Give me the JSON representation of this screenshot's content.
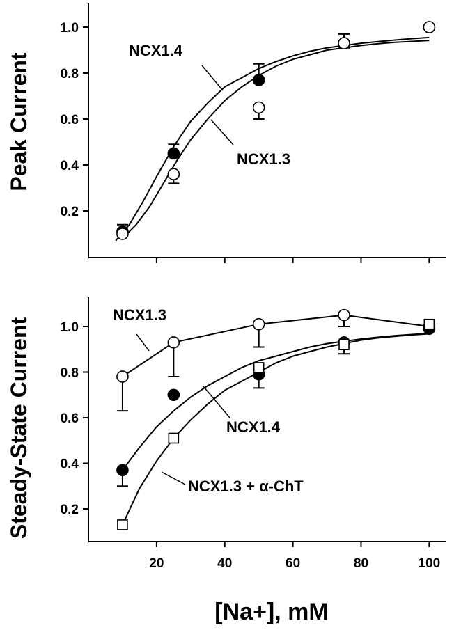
{
  "x_axis_title": "[Na+], mM",
  "chart_data": [
    {
      "type": "scatter",
      "ylabel": "Peak Current",
      "xlim": [
        0,
        105
      ],
      "ylim": [
        0,
        1.08
      ],
      "yticks": [
        0.2,
        0.4,
        0.6,
        0.8,
        1.0
      ],
      "ytick_labels": [
        "0.2",
        "0.4",
        "0.6",
        "0.8",
        "1.0"
      ],
      "series": [
        {
          "name": "NCX1.4",
          "marker": "filled-circle",
          "x": [
            10,
            25,
            50,
            75,
            100
          ],
          "y": [
            0.11,
            0.45,
            0.77,
            0.93,
            1.0
          ],
          "err_up": [
            0.03,
            0.04,
            0.07,
            0.04,
            0.0
          ],
          "err_down": [
            0.0,
            0.0,
            0.0,
            0.0,
            0.0
          ],
          "fit_x": [
            8,
            12,
            16,
            20,
            25,
            30,
            35,
            40,
            45,
            50,
            55,
            60,
            65,
            70,
            75,
            80,
            85,
            90,
            95,
            100
          ],
          "fit_y": [
            0.07,
            0.14,
            0.24,
            0.35,
            0.48,
            0.59,
            0.67,
            0.74,
            0.78,
            0.82,
            0.85,
            0.875,
            0.895,
            0.91,
            0.92,
            0.93,
            0.937,
            0.944,
            0.95,
            0.955
          ]
        },
        {
          "name": "NCX1.3",
          "marker": "open-circle",
          "x": [
            10,
            25,
            50,
            75,
            100
          ],
          "y": [
            0.1,
            0.36,
            0.65,
            0.93,
            1.0
          ],
          "err_up": [
            0.0,
            0.0,
            0.0,
            0.0,
            0.0
          ],
          "err_down": [
            0.0,
            0.04,
            0.05,
            0.02,
            0.0
          ],
          "fit_x": [
            10,
            14,
            18,
            22,
            26,
            30,
            35,
            40,
            45,
            50,
            55,
            60,
            65,
            70,
            75,
            80,
            85,
            90,
            95,
            100
          ],
          "fit_y": [
            0.08,
            0.14,
            0.22,
            0.32,
            0.42,
            0.51,
            0.6,
            0.68,
            0.74,
            0.79,
            0.83,
            0.86,
            0.88,
            0.9,
            0.91,
            0.92,
            0.928,
            0.934,
            0.938,
            0.942
          ]
        }
      ],
      "annotations": [
        {
          "text": "NCX1.4",
          "series": "NCX1.4"
        },
        {
          "text": "NCX1.3",
          "series": "NCX1.3"
        }
      ]
    },
    {
      "type": "scatter",
      "ylabel": "Steady-State Current",
      "xlabel": "[Na+], mM",
      "xlim": [
        0,
        105
      ],
      "ylim": [
        0.05,
        1.08
      ],
      "xticks": [
        20,
        40,
        60,
        80,
        100
      ],
      "xtick_labels": [
        "20",
        "40",
        "60",
        "80",
        "100"
      ],
      "yticks": [
        0.2,
        0.4,
        0.6,
        0.8,
        1.0
      ],
      "ytick_labels": [
        "0.2",
        "0.4",
        "0.6",
        "0.8",
        "1.0"
      ],
      "series": [
        {
          "name": "NCX1.3",
          "marker": "open-circle",
          "connected": true,
          "x": [
            10,
            25,
            50,
            75,
            100
          ],
          "y": [
            0.78,
            0.93,
            1.01,
            1.05,
            1.0
          ],
          "err_up": [
            0.0,
            0.0,
            0.0,
            0.0,
            0.0
          ],
          "err_down": [
            0.15,
            0.15,
            0.1,
            0.05,
            0.0
          ]
        },
        {
          "name": "NCX1.4",
          "marker": "filled-circle",
          "x": [
            10,
            25,
            50,
            75,
            100
          ],
          "y": [
            0.37,
            0.7,
            0.79,
            0.93,
            0.99
          ],
          "err_up": [
            0.0,
            0.0,
            0.0,
            0.0,
            0.0
          ],
          "err_down": [
            0.07,
            0.0,
            0.06,
            0.0,
            0.0
          ],
          "fit_x": [
            10,
            15,
            20,
            25,
            30,
            35,
            40,
            45,
            50,
            55,
            60,
            65,
            70,
            75,
            80,
            85,
            90,
            95,
            100
          ],
          "fit_y": [
            0.37,
            0.47,
            0.56,
            0.63,
            0.69,
            0.74,
            0.78,
            0.82,
            0.85,
            0.87,
            0.89,
            0.91,
            0.925,
            0.935,
            0.945,
            0.953,
            0.96,
            0.965,
            0.97
          ]
        },
        {
          "name": "NCX1.3 + α-ChT",
          "marker": "open-square",
          "x": [
            10,
            25,
            50,
            75,
            100
          ],
          "y": [
            0.13,
            0.51,
            0.82,
            0.92,
            1.01
          ],
          "err_up": [
            0.0,
            0.0,
            0.0,
            0.0,
            0.0
          ],
          "err_down": [
            0.0,
            0.0,
            0.0,
            0.04,
            0.0
          ],
          "fit_x": [
            10,
            15,
            20,
            25,
            30,
            35,
            40,
            45,
            50,
            55,
            60,
            65,
            70,
            75,
            80,
            85,
            90,
            95,
            100
          ],
          "fit_y": [
            0.13,
            0.29,
            0.41,
            0.51,
            0.59,
            0.66,
            0.72,
            0.76,
            0.8,
            0.84,
            0.87,
            0.89,
            0.91,
            0.925,
            0.94,
            0.95,
            0.957,
            0.963,
            0.968
          ]
        }
      ],
      "annotations": [
        {
          "text": "NCX1.3",
          "series": "NCX1.3"
        },
        {
          "text": "NCX1.4",
          "series": "NCX1.4"
        },
        {
          "text": "NCX1.3 + α-ChT",
          "series": "NCX1.3 + α-ChT"
        }
      ]
    }
  ]
}
